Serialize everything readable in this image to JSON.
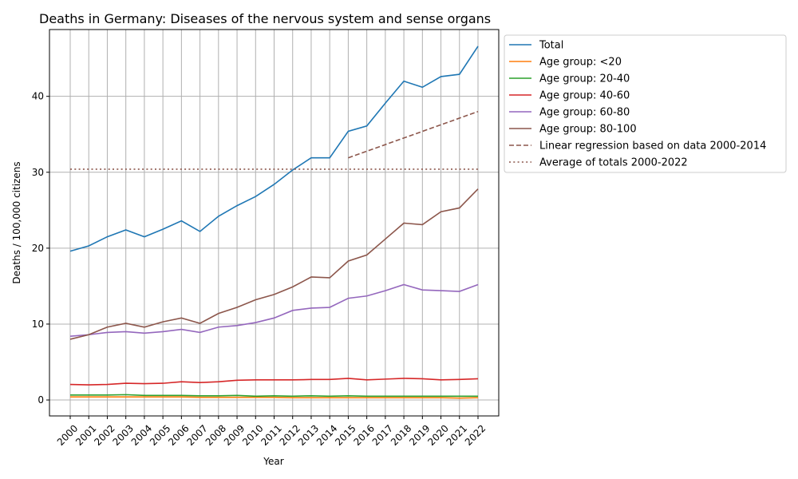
{
  "chart_data": {
    "type": "line",
    "title": "Deaths in Germany: Diseases of the nervous system and sense organs",
    "xlabel": "Year",
    "ylabel": "Deaths / 100,000 citizens",
    "ylim": [
      -2.1,
      48.8
    ],
    "yticks": [
      "0",
      "10",
      "20",
      "30",
      "40"
    ],
    "grid": true,
    "legend_position": "outside-top-right",
    "x": [
      2000,
      2001,
      2002,
      2003,
      2004,
      2005,
      2006,
      2007,
      2008,
      2009,
      2010,
      2011,
      2012,
      2013,
      2014,
      2015,
      2016,
      2017,
      2018,
      2019,
      2020,
      2021,
      2022
    ],
    "series": [
      {
        "name": "Total",
        "color": "#1f77b4",
        "style": "solid",
        "values": [
          19.6,
          20.3,
          21.5,
          22.4,
          21.5,
          22.5,
          23.6,
          22.2,
          24.2,
          25.6,
          26.8,
          28.4,
          30.3,
          31.9,
          31.9,
          35.4,
          36.1,
          39.1,
          42.0,
          41.2,
          42.6,
          42.9,
          46.6
        ]
      },
      {
        "name": "Age group: <20",
        "color": "#ff7f0e",
        "style": "solid",
        "values": [
          0.4,
          0.4,
          0.4,
          0.4,
          0.4,
          0.4,
          0.4,
          0.35,
          0.35,
          0.35,
          0.35,
          0.35,
          0.3,
          0.3,
          0.3,
          0.3,
          0.3,
          0.3,
          0.3,
          0.3,
          0.3,
          0.25,
          0.3
        ]
      },
      {
        "name": "Age group: 20-40",
        "color": "#2ca02c",
        "style": "solid",
        "values": [
          0.65,
          0.65,
          0.65,
          0.7,
          0.6,
          0.6,
          0.6,
          0.55,
          0.55,
          0.6,
          0.5,
          0.55,
          0.5,
          0.55,
          0.5,
          0.55,
          0.5,
          0.5,
          0.5,
          0.5,
          0.5,
          0.5,
          0.5
        ]
      },
      {
        "name": "Age group: 40-60",
        "color": "#d62728",
        "style": "solid",
        "values": [
          2.05,
          2.0,
          2.05,
          2.2,
          2.15,
          2.2,
          2.4,
          2.3,
          2.4,
          2.6,
          2.65,
          2.65,
          2.65,
          2.7,
          2.7,
          2.85,
          2.65,
          2.75,
          2.85,
          2.8,
          2.65,
          2.7,
          2.8
        ]
      },
      {
        "name": "Age group: 60-80",
        "color": "#9467bd",
        "style": "solid",
        "values": [
          8.4,
          8.6,
          8.9,
          9.0,
          8.8,
          9.0,
          9.3,
          8.9,
          9.6,
          9.8,
          10.2,
          10.8,
          11.8,
          12.1,
          12.2,
          13.4,
          13.7,
          14.4,
          15.2,
          14.5,
          14.4,
          14.3,
          15.2
        ]
      },
      {
        "name": "Age group: 80-100",
        "color": "#8c564b",
        "style": "solid",
        "values": [
          8.0,
          8.6,
          9.6,
          10.1,
          9.6,
          10.3,
          10.8,
          10.1,
          11.4,
          12.2,
          13.2,
          13.9,
          14.9,
          16.2,
          16.1,
          18.3,
          19.1,
          21.2,
          23.3,
          23.1,
          24.8,
          25.3,
          27.8
        ]
      },
      {
        "name": "Linear regression based on data 2000-2014",
        "color": "#8c564b",
        "style": "dashed",
        "x": [
          2015,
          2022
        ],
        "values": [
          31.9,
          38.0
        ]
      },
      {
        "name": "Average of totals 2000-2022",
        "color": "#8c564b",
        "style": "dotted",
        "x": [
          2000,
          2022
        ],
        "values": [
          30.4,
          30.4
        ]
      }
    ]
  }
}
